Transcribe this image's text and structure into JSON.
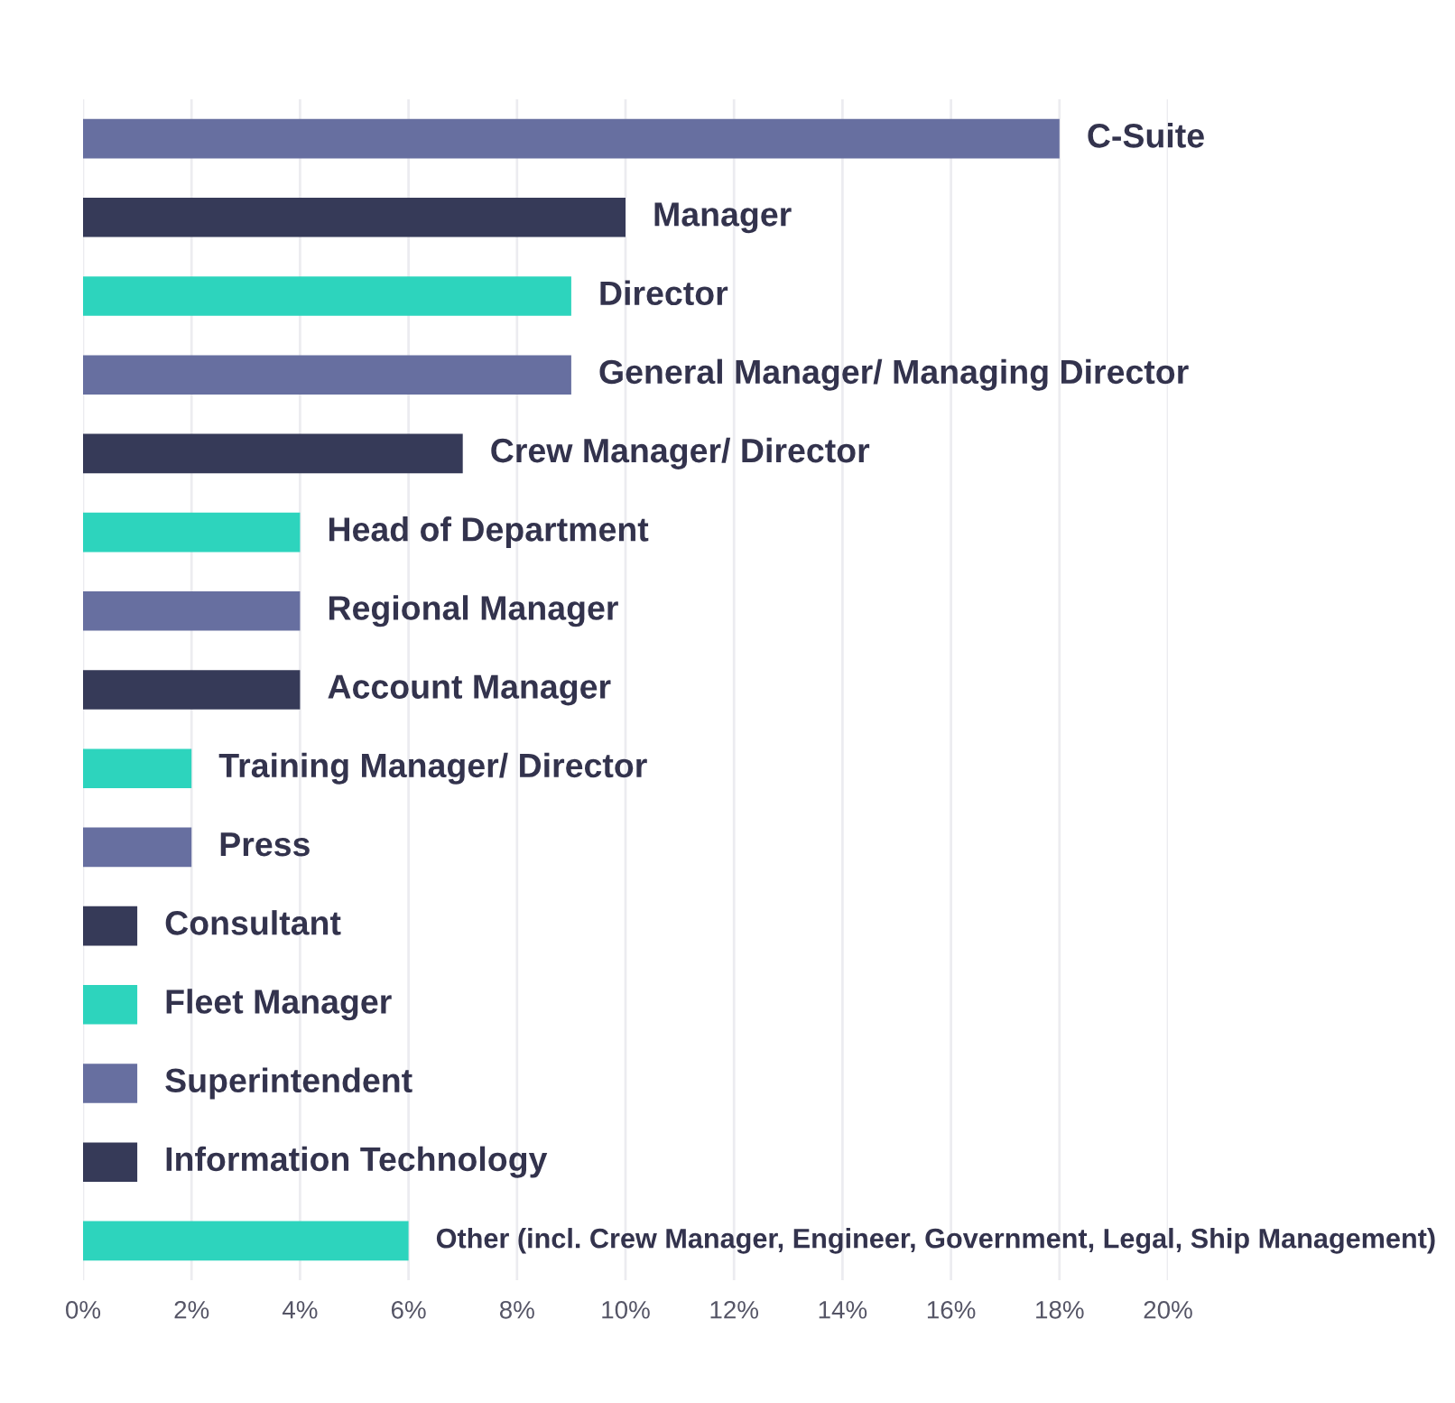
{
  "chart_data": {
    "type": "bar",
    "orientation": "horizontal",
    "categories": [
      "C-Suite",
      "Manager",
      "Director",
      "General Manager/ Managing Director",
      "Crew Manager/ Director",
      "Head of Department",
      "Regional Manager",
      "Account Manager",
      "Training Manager/ Director",
      "Press",
      "Consultant",
      "Fleet Manager",
      "Superintendent",
      "Information Technology",
      "Other (incl. Crew Manager, Engineer, Government, Legal, Ship Management)"
    ],
    "values": [
      18,
      10,
      9,
      9,
      7,
      4,
      4,
      4,
      2,
      2,
      1,
      1,
      1,
      1,
      6
    ],
    "colors": [
      "#676fa0",
      "#363a58",
      "#2dd4bd",
      "#676fa0",
      "#363a58",
      "#2dd4bd",
      "#676fa0",
      "#363a58",
      "#2dd4bd",
      "#676fa0",
      "#363a58",
      "#2dd4bd",
      "#676fa0",
      "#363a58",
      "#2dd4bd"
    ],
    "xlim": [
      0,
      20
    ],
    "xticks": [
      {
        "value": 0,
        "label": "0%"
      },
      {
        "value": 2,
        "label": "2%"
      },
      {
        "value": 4,
        "label": "4%"
      },
      {
        "value": 6,
        "label": "6%"
      },
      {
        "value": 8,
        "label": "8%"
      },
      {
        "value": 10,
        "label": "10%"
      },
      {
        "value": 12,
        "label": "12%"
      },
      {
        "value": 14,
        "label": "14%"
      },
      {
        "value": 16,
        "label": "16%"
      },
      {
        "value": 18,
        "label": "18%"
      },
      {
        "value": 20,
        "label": "20%"
      }
    ],
    "tick_labels": "x",
    "grid": "x",
    "legend": false
  }
}
